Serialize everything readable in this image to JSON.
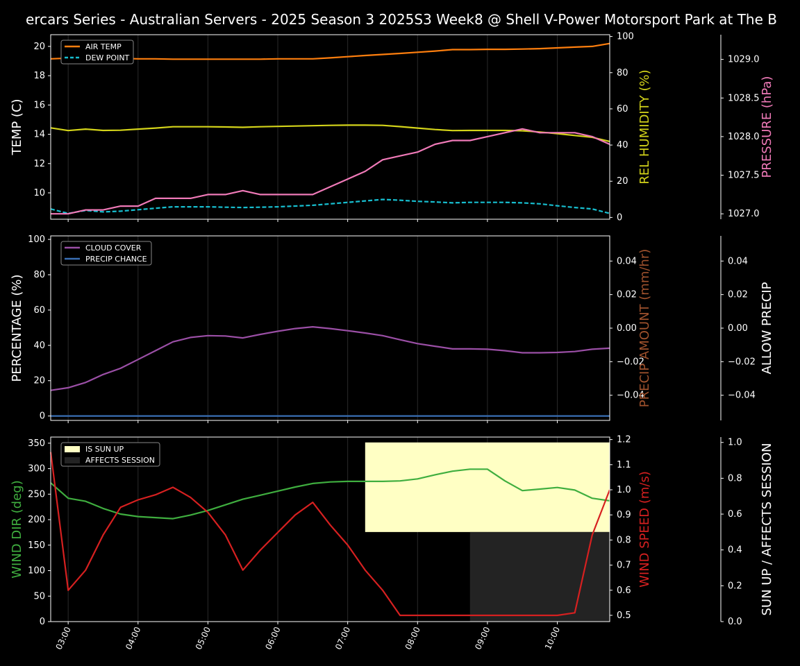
{
  "title": "ercars Series - Australian Servers - 2025 Season 3 2025S3 Week8 @ Shell V-Power Motorsport Park at The B",
  "colors": {
    "background": "#000000",
    "axis": "#ffffff",
    "grid": "#2a2a2a",
    "air_temp": "#ff7f0e",
    "dew_point": "#17becf",
    "humidity": "#d4d41a",
    "pressure": "#f07ab8",
    "cloud_cover": "#9b4fa6",
    "precip_chance": "#3a6fb5",
    "precip_amount": "#a0522d",
    "wind_dir": "#3fae3f",
    "wind_speed": "#d62020",
    "sun_up": "#ffffc4",
    "affects_session": "#232323"
  },
  "chart_data": [
    {
      "type": "line",
      "name": "temperature-panel",
      "x": [
        "02:45",
        "03:00",
        "03:15",
        "03:30",
        "03:45",
        "04:00",
        "04:15",
        "04:30",
        "04:45",
        "05:00",
        "05:15",
        "05:30",
        "05:45",
        "06:00",
        "06:15",
        "06:30",
        "06:45",
        "07:00",
        "07:15",
        "07:30",
        "07:45",
        "08:00",
        "08:15",
        "08:30",
        "08:45",
        "09:00",
        "09:15",
        "09:30",
        "09:45",
        "10:00",
        "10:15",
        "10:30",
        "10:45"
      ],
      "xticks": [
        "03:00",
        "04:00",
        "05:00",
        "06:00",
        "07:00",
        "08:00",
        "09:00",
        "10:00"
      ],
      "axes": {
        "left": {
          "label": "TEMP (C)",
          "ylim": [
            8.2,
            20.8
          ],
          "ticks": [
            10,
            12,
            14,
            16,
            18,
            20
          ]
        },
        "right1": {
          "label": "REL HUMIDITY (%)",
          "ylim": [
            -1,
            101
          ],
          "ticks": [
            0,
            20,
            40,
            60,
            80,
            100
          ]
        },
        "right2": {
          "label": "PRESSURE (hPa)",
          "ylim": [
            1026.93,
            1029.32
          ],
          "ticks": [
            "1027.0",
            "1027.5",
            "1028.0",
            "1028.5",
            "1029.0"
          ]
        }
      },
      "legend": [
        "AIR TEMP",
        "DEW POINT"
      ],
      "series": [
        {
          "name": "AIR TEMP",
          "axis": "left",
          "color_key": "air_temp",
          "dash": false,
          "values": [
            19.15,
            19.2,
            19.2,
            19.2,
            19.18,
            19.15,
            19.15,
            19.13,
            19.13,
            19.13,
            19.13,
            19.13,
            19.13,
            19.15,
            19.15,
            19.15,
            19.22,
            19.3,
            19.38,
            19.45,
            19.52,
            19.6,
            19.68,
            19.78,
            19.78,
            19.8,
            19.8,
            19.82,
            19.85,
            19.9,
            19.95,
            20.0,
            20.2
          ]
        },
        {
          "name": "DEW POINT",
          "axis": "left",
          "color_key": "dew_point",
          "dash": true,
          "values": [
            8.9,
            8.6,
            8.8,
            8.7,
            8.75,
            8.85,
            8.95,
            9.05,
            9.05,
            9.05,
            9.02,
            9.0,
            9.02,
            9.05,
            9.1,
            9.15,
            9.25,
            9.35,
            9.45,
            9.55,
            9.5,
            9.42,
            9.38,
            9.32,
            9.35,
            9.35,
            9.35,
            9.32,
            9.25,
            9.12,
            9.0,
            8.9,
            8.6
          ]
        },
        {
          "name": "REL HUMIDITY",
          "axis": "right1",
          "color_key": "humidity",
          "dash": false,
          "values": [
            49.5,
            48,
            48.8,
            48.1,
            48.2,
            48.8,
            49.4,
            50.1,
            50.1,
            50.1,
            50.0,
            49.8,
            50.1,
            50.3,
            50.5,
            50.7,
            50.9,
            51.0,
            51.0,
            50.9,
            50.2,
            49.4,
            48.6,
            48.0,
            48.1,
            48.1,
            48.1,
            47.9,
            47.2,
            46.3,
            45.3,
            44.3,
            42
          ]
        },
        {
          "name": "PRESSURE",
          "axis": "right2",
          "color_key": "pressure",
          "dash": false,
          "values": [
            1027.0,
            1027.0,
            1027.05,
            1027.05,
            1027.1,
            1027.1,
            1027.2,
            1027.2,
            1027.2,
            1027.25,
            1027.25,
            1027.3,
            1027.25,
            1027.25,
            1027.25,
            1027.25,
            1027.35,
            1027.45,
            1027.55,
            1027.7,
            1027.75,
            1027.8,
            1027.9,
            1027.95,
            1027.95,
            1028.0,
            1028.05,
            1028.1,
            1028.05,
            1028.05,
            1028.05,
            1028.0,
            1027.9
          ]
        }
      ]
    },
    {
      "type": "line",
      "name": "precipitation-panel",
      "x": [
        "02:45",
        "03:00",
        "03:15",
        "03:30",
        "03:45",
        "04:00",
        "04:15",
        "04:30",
        "04:45",
        "05:00",
        "05:15",
        "05:30",
        "05:45",
        "06:00",
        "06:15",
        "06:30",
        "06:45",
        "07:00",
        "07:15",
        "07:30",
        "07:45",
        "08:00",
        "08:15",
        "08:30",
        "08:45",
        "09:00",
        "09:15",
        "09:30",
        "09:45",
        "10:00",
        "10:15",
        "10:30",
        "10:45"
      ],
      "xticks": [
        "03:00",
        "04:00",
        "05:00",
        "06:00",
        "07:00",
        "08:00",
        "09:00",
        "10:00"
      ],
      "axes": {
        "left": {
          "label": "PERCENTAGE (%)",
          "ylim": [
            -2.5,
            102
          ],
          "ticks": [
            0,
            20,
            40,
            60,
            80,
            100
          ]
        },
        "right1": {
          "label": "PRECIP AMOUNT (mm/hr)",
          "ylim": [
            -0.055,
            0.055
          ],
          "ticks": [
            "−0.04",
            "−0.02",
            "0.00",
            "0.02",
            "0.04"
          ]
        },
        "right2": {
          "label": "ALLOW PRECIP",
          "ylim": [
            -0.055,
            0.055
          ],
          "ticks": [
            "−0.04",
            "−0.02",
            "0.00",
            "0.02",
            "0.04"
          ]
        }
      },
      "legend": [
        "CLOUD COVER",
        "PRECIP CHANCE"
      ],
      "series": [
        {
          "name": "CLOUD COVER",
          "axis": "left",
          "color_key": "cloud_cover",
          "dash": false,
          "values": [
            14.5,
            16,
            19,
            23.5,
            27,
            32,
            37,
            42,
            44.5,
            45.5,
            45.3,
            44.2,
            46.2,
            48,
            49.5,
            50.5,
            49.5,
            48.3,
            47,
            45.5,
            43.2,
            41,
            39.5,
            38,
            38,
            37.8,
            37,
            35.8,
            35.8,
            36,
            36.5,
            37.8,
            38.4
          ]
        },
        {
          "name": "PRECIP CHANCE",
          "axis": "left",
          "color_key": "precip_chance",
          "dash": false,
          "values": [
            0,
            0,
            0,
            0,
            0,
            0,
            0,
            0,
            0,
            0,
            0,
            0,
            0,
            0,
            0,
            0,
            0,
            0,
            0,
            0,
            0,
            0,
            0,
            0,
            0,
            0,
            0,
            0,
            0,
            0,
            0,
            0,
            0
          ]
        }
      ]
    },
    {
      "type": "line",
      "name": "wind-panel",
      "x": [
        "02:45",
        "03:00",
        "03:15",
        "03:30",
        "03:45",
        "04:00",
        "04:15",
        "04:30",
        "04:45",
        "05:00",
        "05:15",
        "05:30",
        "05:45",
        "06:00",
        "06:15",
        "06:30",
        "06:45",
        "07:00",
        "07:15",
        "07:30",
        "07:45",
        "08:00",
        "08:15",
        "08:30",
        "08:45",
        "09:00",
        "09:15",
        "09:30",
        "09:45",
        "10:00",
        "10:15",
        "10:30",
        "10:45"
      ],
      "xticks": [
        "03:00",
        "04:00",
        "05:00",
        "06:00",
        "07:00",
        "08:00",
        "09:00",
        "10:00"
      ],
      "axes": {
        "left": {
          "label": "WIND DIR (deg)",
          "ylim": [
            0,
            362
          ],
          "ticks": [
            0,
            50,
            100,
            150,
            200,
            250,
            300,
            350
          ]
        },
        "right1": {
          "label": "WIND SPEED (m/s)",
          "ylim": [
            0.475,
            1.21
          ],
          "ticks": [
            "0.5",
            "0.6",
            "0.7",
            "0.8",
            "0.9",
            "1.0",
            "1.1",
            "1.2"
          ]
        },
        "right2": {
          "label": "SUN UP / AFFECTS SESSION",
          "ylim": [
            0,
            1.03
          ],
          "ticks": [
            "0.0",
            "0.2",
            "0.4",
            "0.6",
            "0.8",
            "1.0"
          ]
        }
      },
      "legend": [
        "IS SUN UP",
        "AFFECTS SESSION"
      ],
      "areas": [
        {
          "name": "IS SUN UP",
          "color_key": "sun_up",
          "from": "07:15",
          "to": "10:45",
          "y0": 0.5,
          "y1": 1.0
        },
        {
          "name": "AFFECTS SESSION",
          "color_key": "affects_session",
          "from": "08:45",
          "to": "10:45",
          "y0": 0.0,
          "y1": 0.5
        }
      ],
      "series": [
        {
          "name": "WIND DIR",
          "axis": "left",
          "color_key": "wind_dir",
          "dash": false,
          "values": [
            272,
            242,
            236,
            222,
            211,
            206,
            204,
            202,
            209,
            218,
            229,
            240,
            248,
            256,
            264,
            271,
            274,
            275,
            275,
            275,
            276,
            280,
            288,
            295,
            299,
            299,
            276,
            257,
            260,
            263,
            258,
            242,
            237
          ]
        },
        {
          "name": "WIND SPEED",
          "axis": "right1",
          "color_key": "wind_speed",
          "dash": false,
          "values": [
            1.15,
            0.6,
            0.68,
            0.82,
            0.93,
            0.96,
            0.98,
            1.01,
            0.97,
            0.91,
            0.82,
            0.68,
            0.76,
            0.83,
            0.9,
            0.95,
            0.86,
            0.78,
            0.68,
            0.6,
            0.5,
            0.5,
            0.5,
            0.5,
            0.5,
            0.5,
            0.5,
            0.5,
            0.5,
            0.5,
            0.51,
            0.82,
            1.0
          ]
        }
      ]
    }
  ]
}
